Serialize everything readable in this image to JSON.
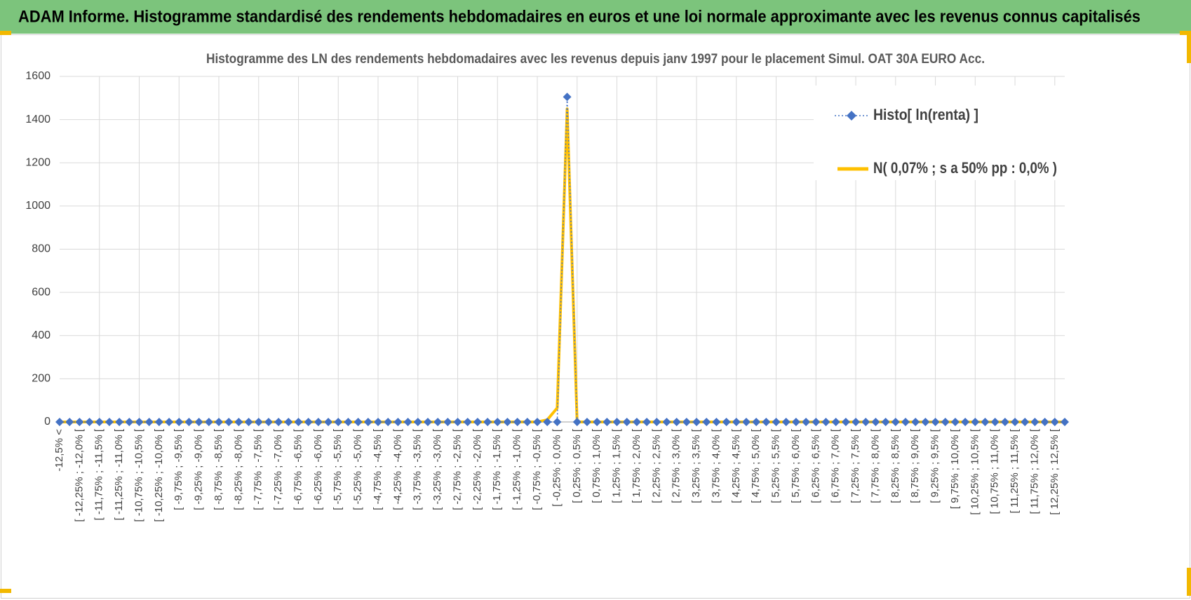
{
  "header": {
    "title": "ADAM Informe. Histogramme standardisé des rendements hebdomadaires en euros et une loi normale approximante avec les revenus connus capitalisés"
  },
  "chart_data": {
    "type": "line",
    "title": "Histogramme  des LN des rendements hebdomadaires avec les revenus depuis janv 1997 pour le placement Simul. OAT 30A EURO Acc.",
    "categories": [
      "-12,5% <",
      null,
      "[ -12,25% ; -12,0% [",
      null,
      "[ -11,75% ; -11,5% [",
      null,
      "[ -11,25% ; -11,0% [",
      null,
      "[ -10,75% ; -10,5% [",
      null,
      "[ -10,25% ; -10,0% [",
      null,
      "[ -9,75% ; -9,5% [",
      null,
      "[ -9,25% ; -9,0% [",
      null,
      "[ -8,75% ; -8,5% [",
      null,
      "[ -8,25% ; -8,0% [",
      null,
      "[ -7,75% ; -7,5% [",
      null,
      "[ -7,25% ; -7,0% [",
      null,
      "[ -6,75% ; -6,5% [",
      null,
      "[ -6,25% ; -6,0% [",
      null,
      "[ -5,75% ; -5,5% [",
      null,
      "[ -5,25% ; -5,0% [",
      null,
      "[ -4,75% ; -4,5% [",
      null,
      "[ -4,25% ; -4,0% [",
      null,
      "[ -3,75% ; -3,5% [",
      null,
      "[ -3,25% ; -3,0% [",
      null,
      "[ -2,75% ; -2,5% [",
      null,
      "[ -2,25% ; -2,0% [",
      null,
      "[ -1,75% ; -1,5% [",
      null,
      "[ -1,25% ; -1,0% [",
      null,
      "[ -0,75% ; -0,5% [",
      null,
      "[ -0,25% ; 0,0% [",
      null,
      "[ 0,25% ; 0,5% [",
      null,
      "[ 0,75% ; 1,0% [",
      null,
      "[ 1,25% ; 1,5% [",
      null,
      "[ 1,75% ; 2,0% [",
      null,
      "[ 2,25% ; 2,5% [",
      null,
      "[ 2,75% ; 3,0% [",
      null,
      "[ 3,25% ; 3,5% [",
      null,
      "[ 3,75% ; 4,0% [",
      null,
      "[ 4,25% ; 4,5% [",
      null,
      "[ 4,75% ; 5,0% [",
      null,
      "[ 5,25% ; 5,5% [",
      null,
      "[ 5,75% ; 6,0% [",
      null,
      "[ 6,25% ; 6,5% [",
      null,
      "[ 6,75% ; 7,0% [",
      null,
      "[ 7,25% ; 7,5% [",
      null,
      "[ 7,75% ; 8,0% [",
      null,
      "[ 8,25% ; 8,5% [",
      null,
      "[ 8,75% ; 9,0% [",
      null,
      "[ 9,25% ; 9,5% [",
      null,
      "[ 9,75% ; 10,0% [",
      null,
      "[ 10,25% ; 10,5% [",
      null,
      "[ 10,75% ; 11,0% [",
      null,
      "[ 11,25% ; 11,5% [",
      null,
      "[ 11,75% ; 12,0% [",
      null,
      "[ 12,25% ; 12,5% [",
      null
    ],
    "series": [
      {
        "name": "Histo[ ln(renta) ]",
        "color": "#4472c4",
        "marker": "diamond",
        "line": "dotted",
        "values": [
          0,
          0,
          0,
          0,
          0,
          0,
          0,
          0,
          0,
          0,
          0,
          0,
          0,
          0,
          0,
          0,
          0,
          0,
          0,
          0,
          0,
          0,
          0,
          0,
          0,
          0,
          0,
          0,
          0,
          0,
          0,
          0,
          0,
          0,
          0,
          0,
          0,
          0,
          0,
          0,
          0,
          0,
          0,
          0,
          0,
          0,
          0,
          0,
          0,
          0,
          0,
          1505,
          0,
          0,
          0,
          0,
          0,
          0,
          0,
          0,
          0,
          0,
          0,
          0,
          0,
          0,
          0,
          0,
          0,
          0,
          0,
          0,
          0,
          0,
          0,
          0,
          0,
          0,
          0,
          0,
          0,
          0,
          0,
          0,
          0,
          0,
          0,
          0,
          0,
          0,
          0,
          0,
          0,
          0,
          0,
          0,
          0,
          0,
          0,
          0,
          0,
          0
        ]
      },
      {
        "name": "N( 0,07% ; s a 50% pp : 0,0% )",
        "color": "#ffc000",
        "marker": "none",
        "line": "solid",
        "values": [
          0,
          0,
          0,
          0,
          0,
          0,
          0,
          0,
          0,
          0,
          0,
          0,
          0,
          0,
          0,
          0,
          0,
          0,
          0,
          0,
          0,
          0,
          0,
          0,
          0,
          0,
          0,
          0,
          0,
          0,
          0,
          0,
          0,
          0,
          0,
          0,
          0,
          0,
          0,
          0,
          0,
          0,
          0,
          0,
          0,
          0,
          0,
          0,
          0,
          10,
          65,
          1450,
          0,
          0,
          0,
          0,
          0,
          0,
          0,
          0,
          0,
          0,
          0,
          0,
          0,
          0,
          0,
          0,
          0,
          0,
          0,
          0,
          0,
          0,
          0,
          0,
          0,
          0,
          0,
          0,
          0,
          0,
          0,
          0,
          0,
          0,
          0,
          0,
          0,
          0,
          0,
          0,
          0,
          0,
          0,
          0,
          0,
          0,
          0,
          0,
          0,
          0
        ]
      }
    ],
    "ylim": [
      0,
      1600
    ],
    "yticks": [
      0,
      200,
      400,
      600,
      800,
      1000,
      1200,
      1400,
      1600
    ],
    "grid": true,
    "legend": "upper right"
  }
}
